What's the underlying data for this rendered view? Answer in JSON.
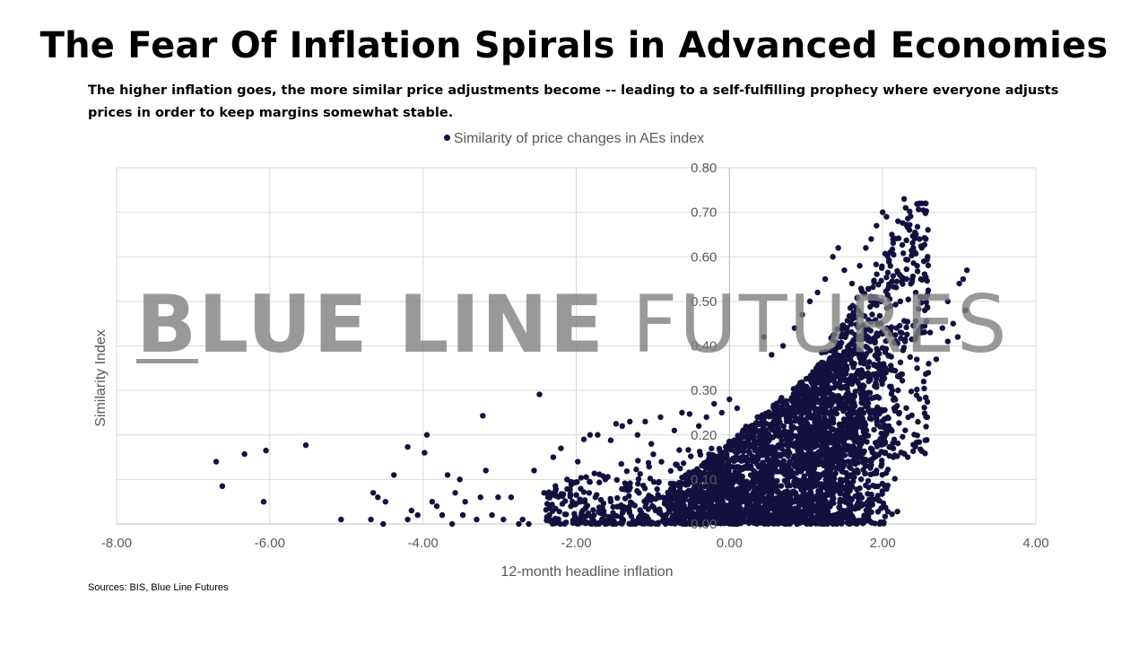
{
  "title": "The Fear Of Inflation Spirals in Advanced Economies",
  "subtitle": "The higher inflation goes, the more similar price adjustments become -- leading to a self-fulfilling prophecy where everyone adjusts prices in order to keep margins somewhat stable.",
  "sources": "Sources: BIS, Blue Line Futures",
  "watermark": {
    "bold_first": "B",
    "bold_rest": "LUE LINE",
    "light": " FUTURES"
  },
  "colors": {
    "marker": "#12103f",
    "grid": "#d9d9d9",
    "text": "#595959"
  },
  "chart_data": {
    "type": "scatter",
    "title": "The Fear Of Inflation Spirals in Advanced Economies",
    "xlabel": "12-month headline inflation",
    "ylabel": "Similarity Index",
    "xlim": [
      -8,
      4
    ],
    "ylim": [
      0,
      0.8
    ],
    "x_ticks": [
      "-8.00",
      "-6.00",
      "-4.00",
      "-2.00",
      "0.00",
      "2.00",
      "4.00"
    ],
    "y_ticks": [
      "0.00",
      "0.10",
      "0.20",
      "0.30",
      "0.40",
      "0.50",
      "0.60",
      "0.70",
      "0.80"
    ],
    "grid": true,
    "legend_position": "top-center",
    "series": [
      {
        "name": "Similarity of price changes in AEs index",
        "points": [
          [
            -6.7,
            0.14
          ],
          [
            -6.62,
            0.085
          ],
          [
            -6.33,
            0.157
          ],
          [
            -6.05,
            0.165
          ],
          [
            -6.08,
            0.05
          ],
          [
            -5.53,
            0.177
          ],
          [
            -5.07,
            0.01
          ],
          [
            -4.68,
            0.01
          ],
          [
            -4.65,
            0.07
          ],
          [
            -4.59,
            0.06
          ],
          [
            -4.49,
            0.05
          ],
          [
            -4.52,
            0.0
          ],
          [
            -4.38,
            0.11
          ],
          [
            -4.2,
            0.173
          ],
          [
            -4.2,
            0.01
          ],
          [
            -4.15,
            0.03
          ],
          [
            -4.07,
            0.02
          ],
          [
            -3.95,
            0.2
          ],
          [
            -3.98,
            0.16
          ],
          [
            -3.88,
            0.05
          ],
          [
            -3.82,
            0.04
          ],
          [
            -3.75,
            0.02
          ],
          [
            -3.68,
            0.11
          ],
          [
            -3.62,
            0.0
          ],
          [
            -3.58,
            0.07
          ],
          [
            -3.52,
            0.1
          ],
          [
            -3.48,
            0.02
          ],
          [
            -3.45,
            0.05
          ],
          [
            -3.3,
            0.01
          ],
          [
            -3.25,
            0.06
          ],
          [
            -3.22,
            0.243
          ],
          [
            -3.18,
            0.12
          ],
          [
            -3.1,
            0.02
          ],
          [
            -3.02,
            0.06
          ],
          [
            -2.95,
            0.01
          ],
          [
            -2.85,
            0.06
          ],
          [
            -2.75,
            0.0
          ],
          [
            -2.7,
            0.01
          ],
          [
            -2.62,
            0.0
          ],
          [
            -2.55,
            0.12
          ],
          [
            -2.48,
            0.291
          ],
          [
            -2.42,
            0.07
          ],
          [
            -2.35,
            0.02
          ],
          [
            -2.3,
            0.15
          ],
          [
            -2.2,
            0.17
          ],
          [
            -2.12,
            0.1
          ],
          [
            -2.05,
            0.05
          ],
          [
            -1.98,
            0.14
          ],
          [
            -1.9,
            0.19
          ],
          [
            -1.82,
            0.2
          ],
          [
            -1.75,
            0.06
          ],
          [
            -1.72,
            0.2
          ],
          [
            -1.62,
            0.1
          ],
          [
            -1.55,
            0.188
          ],
          [
            -1.48,
            0.225
          ],
          [
            -1.4,
            0.22
          ],
          [
            -1.3,
            0.23
          ],
          [
            -1.2,
            0.2
          ],
          [
            -1.1,
            0.23
          ],
          [
            -1.02,
            0.18
          ],
          [
            -0.9,
            0.24
          ],
          [
            -0.72,
            0.21
          ],
          [
            -0.62,
            0.25
          ],
          [
            -0.52,
            0.247
          ],
          [
            -0.4,
            0.22
          ],
          [
            -0.3,
            0.24
          ],
          [
            -0.2,
            0.27
          ],
          [
            -0.1,
            0.25
          ],
          [
            0.0,
            0.28
          ],
          [
            0.1,
            0.26
          ],
          [
            0.45,
            0.42
          ],
          [
            0.55,
            0.38
          ],
          [
            0.7,
            0.4
          ],
          [
            0.85,
            0.44
          ],
          [
            0.95,
            0.47
          ],
          [
            1.05,
            0.5
          ],
          [
            1.15,
            0.52
          ],
          [
            1.25,
            0.55
          ],
          [
            1.35,
            0.6
          ],
          [
            1.42,
            0.62
          ],
          [
            1.5,
            0.57
          ],
          [
            1.6,
            0.54
          ],
          [
            1.7,
            0.58
          ],
          [
            1.78,
            0.62
          ],
          [
            1.85,
            0.64
          ],
          [
            1.92,
            0.67
          ],
          [
            2.0,
            0.7
          ],
          [
            2.05,
            0.69
          ],
          [
            2.12,
            0.65
          ],
          [
            2.2,
            0.68
          ],
          [
            2.28,
            0.73
          ],
          [
            2.3,
            0.71
          ],
          [
            2.35,
            0.66
          ],
          [
            2.4,
            0.62
          ],
          [
            2.45,
            0.58
          ],
          [
            2.5,
            0.55
          ],
          [
            2.55,
            0.48
          ],
          [
            2.62,
            0.43
          ],
          [
            2.7,
            0.37
          ],
          [
            2.78,
            0.44
          ],
          [
            2.85,
            0.5
          ],
          [
            2.92,
            0.45
          ],
          [
            3.0,
            0.54
          ],
          [
            3.05,
            0.55
          ],
          [
            3.1,
            0.57
          ],
          [
            3.08,
            0.48
          ],
          [
            2.98,
            0.42
          ],
          [
            2.85,
            0.41
          ],
          [
            2.6,
            0.36
          ],
          [
            2.45,
            0.35
          ],
          [
            2.2,
            0.3
          ],
          [
            2.15,
            0.26
          ],
          [
            2.08,
            0.22
          ],
          [
            2.02,
            0.18
          ],
          [
            1.98,
            0.13
          ],
          [
            1.92,
            0.12
          ],
          [
            1.85,
            0.14
          ],
          [
            1.75,
            0.19
          ],
          [
            1.65,
            0.16
          ],
          [
            1.58,
            0.11
          ],
          [
            1.62,
            0.01
          ],
          [
            1.55,
            0.02
          ],
          [
            1.48,
            0.03
          ],
          [
            1.4,
            0.0
          ]
        ],
        "cloud_note": "dense cloud of observations concentrated between x -1.5 and 2.5, y 0.00 to 0.45"
      }
    ]
  }
}
